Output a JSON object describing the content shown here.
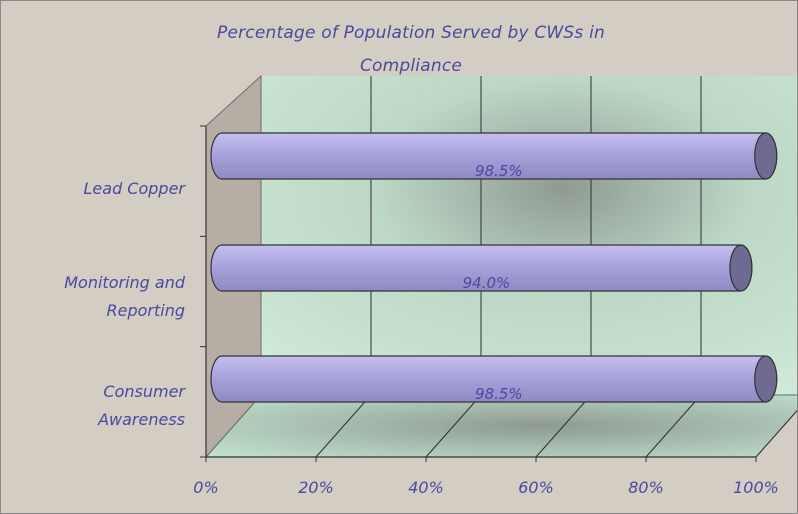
{
  "chart_data": {
    "type": "bar",
    "orientation": "horizontal",
    "title": [
      "Percentage of Population Served by CWSs in",
      "Compliance"
    ],
    "categories": [
      [
        "Lead Copper"
      ],
      [
        "Monitoring and",
        "Reporting"
      ],
      [
        "Consumer",
        "Awareness"
      ]
    ],
    "values": [
      98.5,
      94.0,
      98.5
    ],
    "data_labels": [
      "98.5%",
      "94.0%",
      "98.5%"
    ],
    "x_ticks": [
      "0%",
      "20%",
      "40%",
      "60%",
      "80%",
      "100%"
    ],
    "x_tick_values": [
      0,
      20,
      40,
      60,
      80,
      100
    ],
    "xlim": [
      0,
      100
    ],
    "grid": true,
    "legend": "none",
    "style": "3d-cylinder",
    "colors": {
      "bar": "#a9a3dd",
      "bar_end": "#6f6a92",
      "text": "#4a4a9e",
      "background": "#d3cdc4",
      "plot_wall": "#cfe8d8",
      "plot_floor": "#bfe0cd",
      "side_wall": "#b6aea4"
    }
  }
}
